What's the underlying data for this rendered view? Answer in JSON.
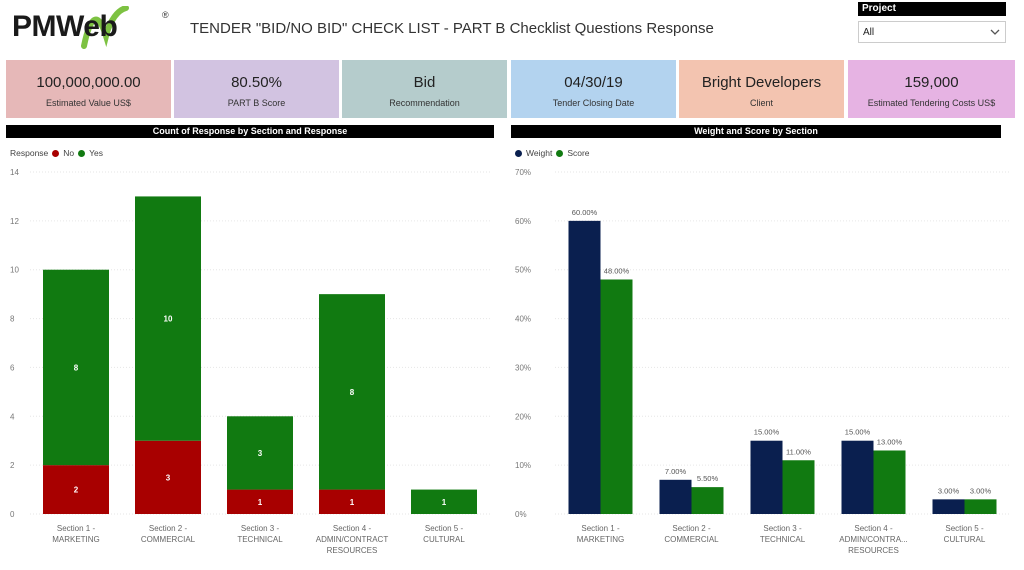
{
  "header": {
    "logo_text": "PMWeb",
    "logo_reg": "®",
    "title": "TENDER \"BID/NO BID\" CHECK LIST - PART B Checklist Questions Response"
  },
  "filter": {
    "label": "Project",
    "value": "All"
  },
  "kpis": [
    {
      "value": "100,000,000.00",
      "label": "Estimated Value US$",
      "color": "#e6b8b8"
    },
    {
      "value": "80.50%",
      "label": "PART B Score",
      "color": "#d2c3e1"
    },
    {
      "value": "Bid",
      "label": "Recommendation",
      "color": "#b5cccc"
    },
    {
      "value": "04/30/19",
      "label": "Tender Closing Date",
      "color": "#b3d3ef"
    },
    {
      "value": "Bright Developers",
      "label": "Client",
      "color": "#f3c4b0"
    },
    {
      "value": "159,000",
      "label": "Estimated Tendering Costs US$",
      "color": "#e6b3e3"
    }
  ],
  "colors": {
    "no": "#a80000",
    "yes": "#117a11",
    "weight": "#0a1f4f",
    "score": "#117a11"
  },
  "chart_data": [
    {
      "type": "bar",
      "stacked": true,
      "title": "Count of Response by Section and Response",
      "legend_title": "Response",
      "categories": [
        [
          "Section 1 -",
          "MARKETING"
        ],
        [
          "Section 2 -",
          "COMMERCIAL"
        ],
        [
          "Section 3 -",
          "TECHNICAL"
        ],
        [
          "Section 4 -",
          "ADMIN/CONTRACT",
          "RESOURCES"
        ],
        [
          "Section 5 -",
          "CULTURAL"
        ]
      ],
      "series": [
        {
          "name": "No",
          "values": [
            2,
            3,
            1,
            1,
            0
          ],
          "labels": [
            "2",
            "3",
            "1",
            "1",
            ""
          ]
        },
        {
          "name": "Yes",
          "values": [
            8,
            10,
            3,
            8,
            1
          ],
          "labels": [
            "8",
            "10",
            "3",
            "8",
            "1"
          ]
        }
      ],
      "ylim": [
        0,
        14
      ],
      "yticks": [
        "0",
        "2",
        "4",
        "6",
        "8",
        "10",
        "12",
        "14"
      ]
    },
    {
      "type": "bar",
      "stacked": false,
      "title": "Weight and Score by Section",
      "legend_title": "",
      "categories": [
        [
          "Section 1 -",
          "MARKETING"
        ],
        [
          "Section 2 -",
          "COMMERCIAL"
        ],
        [
          "Section 3 -",
          "TECHNICAL"
        ],
        [
          "Section 4 -",
          "ADMIN/CONTRA...",
          "RESOURCES"
        ],
        [
          "Section 5 -",
          "CULTURAL"
        ]
      ],
      "series": [
        {
          "name": "Weight",
          "values": [
            60,
            7,
            15,
            15,
            3
          ],
          "labels": [
            "60.00%",
            "7.00%",
            "15.00%",
            "15.00%",
            "3.00%"
          ]
        },
        {
          "name": "Score",
          "values": [
            48,
            5.5,
            11,
            13,
            3
          ],
          "labels": [
            "48.00%",
            "5.50%",
            "11.00%",
            "13.00%",
            "3.00%"
          ]
        }
      ],
      "ylim": [
        0,
        70
      ],
      "yticks": [
        "0%",
        "10%",
        "20%",
        "30%",
        "40%",
        "50%",
        "60%",
        "70%"
      ]
    }
  ]
}
